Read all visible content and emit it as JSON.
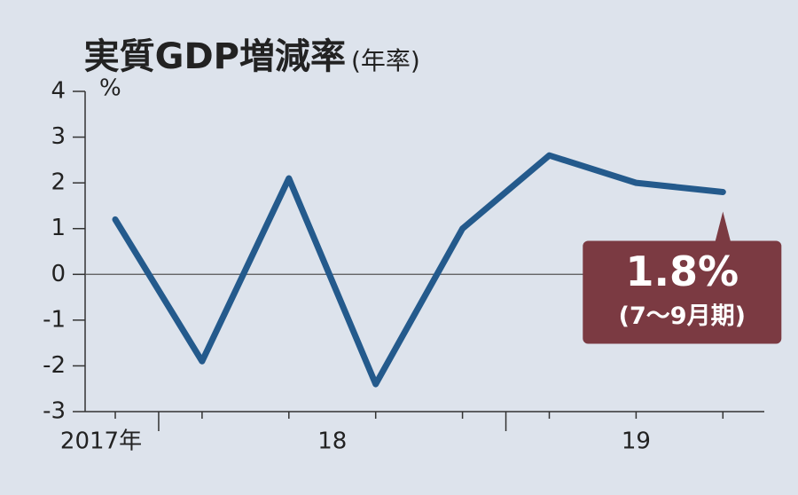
{
  "chart_data": {
    "type": "line",
    "title": "実質GDP増減率",
    "subtitle": "(年率)",
    "y_unit": "%",
    "categories": [
      null,
      null,
      null,
      null,
      null,
      null,
      null,
      null
    ],
    "x_groups": [
      {
        "label": "2017年",
        "size": 1
      },
      {
        "label": "18",
        "size": 4
      },
      {
        "label": "19",
        "size": 3
      }
    ],
    "series": [
      {
        "name": null,
        "color": "#245a8c",
        "values": [
          1.2,
          -1.9,
          2.1,
          -2.4,
          1.0,
          2.6,
          2.0,
          1.8
        ],
        "value_labels": [
          null,
          null,
          null,
          null,
          null,
          null,
          null,
          "1.8%"
        ]
      }
    ],
    "annotation": {
      "text": "(7〜9月期)",
      "color": "#7b3a42"
    },
    "ylim": [
      -3,
      4
    ],
    "yticks": [
      -3,
      -2,
      -1,
      0,
      1,
      2,
      3,
      4
    ],
    "zero_line": true
  }
}
